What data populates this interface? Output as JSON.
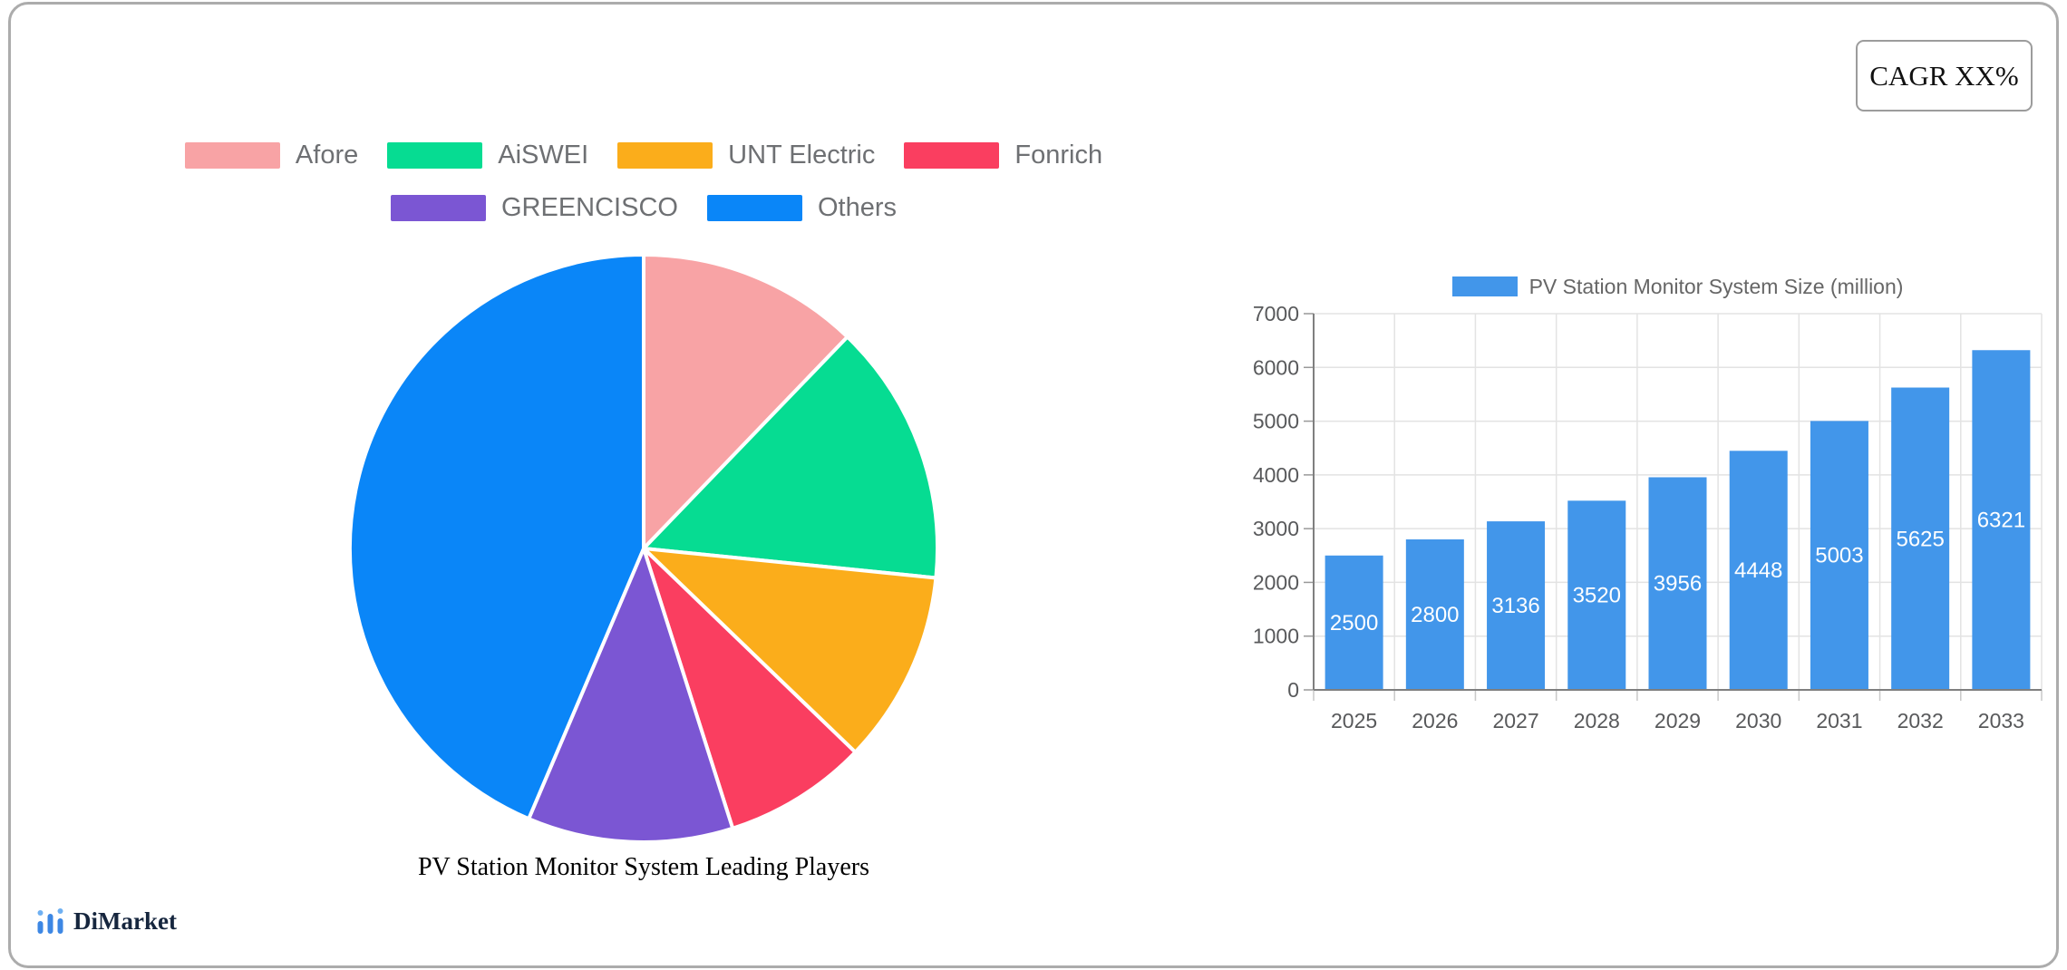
{
  "cagr": {
    "label": "CAGR XX%"
  },
  "branding": {
    "logo_text": "DiMarket",
    "logo_icon": "bar-chart-icon",
    "logo_text_color": "#16263E",
    "logo_icon_blue": "#3D87E4",
    "logo_icon_light_blue": "#6FB0F2"
  },
  "style": {
    "card_border_color": "#ACACAC",
    "grid_color": "#E3E3E3",
    "axis_color": "#7F7F7F",
    "tick_label_color": "#58595B",
    "legend_text_color": "#6E7073"
  },
  "chart_data": [
    {
      "type": "pie",
      "title": "PV Station Monitor System Leading Players",
      "labels": [
        "Afore",
        "AiSWEI",
        "UNT Electric",
        "Fonrich",
        "GREENCISCO",
        "Others"
      ],
      "values": [
        12.2,
        14.4,
        10.6,
        7.9,
        11.3,
        43.6
      ],
      "unit": "%",
      "colors": [
        "#F8A3A5",
        "#06DC92",
        "#FBAD1B",
        "#FA3E60",
        "#7B56D3",
        "#0A86F8"
      ],
      "start_angle_deg": 0,
      "direction": "clockwise",
      "legend_position": "top",
      "legend_rows": [
        4,
        2
      ]
    },
    {
      "type": "bar",
      "series_label": "PV Station Monitor System Size (million)",
      "categories": [
        "2025",
        "2026",
        "2027",
        "2028",
        "2029",
        "2030",
        "2031",
        "2032",
        "2033"
      ],
      "values": [
        2500,
        2800,
        3136,
        3520,
        3956,
        4448,
        5003,
        5625,
        6321
      ],
      "bar_color": "#4296EA",
      "value_label_color": "#FFFFFF",
      "ylim": [
        0,
        7000
      ],
      "yticks": [
        0,
        1000,
        2000,
        3000,
        4000,
        5000,
        6000,
        7000
      ],
      "grid": true,
      "legend_position": "top"
    }
  ]
}
